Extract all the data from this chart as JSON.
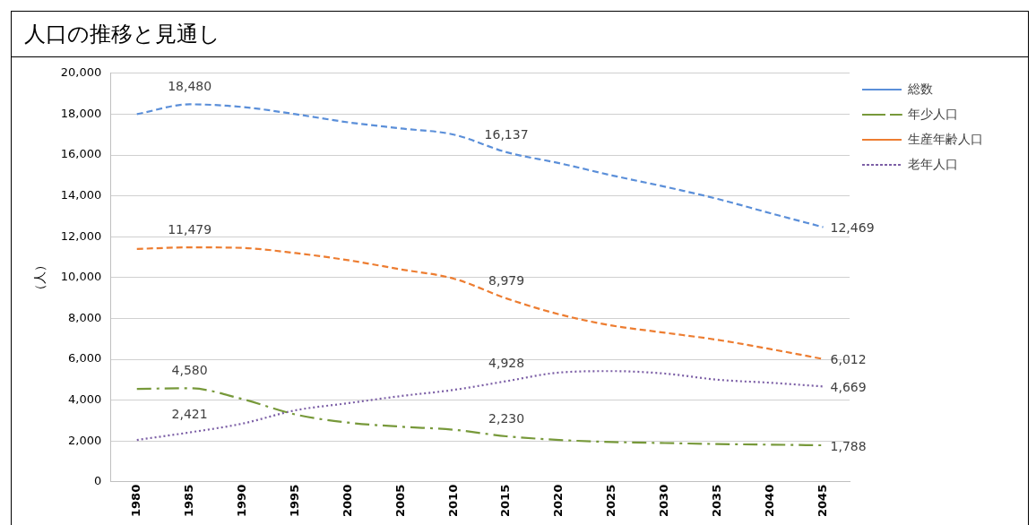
{
  "chart_data": {
    "type": "line",
    "title": "人口の推移と見通し",
    "ylabel": "（人）",
    "categories": [
      "1980",
      "1985",
      "1990",
      "1995",
      "2000",
      "2005",
      "2010",
      "2015",
      "2020",
      "2025",
      "2030",
      "2035",
      "2040",
      "2045"
    ],
    "series": [
      {
        "name": "総数",
        "color": "#5b8fd9",
        "line_style": "dashed",
        "values": [
          18000,
          18480,
          18350,
          18000,
          17600,
          17300,
          17000,
          16137,
          15600,
          15000,
          14450,
          13850,
          13150,
          12469
        ],
        "value_labels": [
          null,
          "18,480",
          null,
          null,
          null,
          null,
          null,
          "16,137",
          null,
          null,
          null,
          null,
          null,
          "12,469"
        ]
      },
      {
        "name": "年少人口",
        "color": "#77993a",
        "line_style": "dashdot",
        "values": [
          4550,
          4580,
          4050,
          3300,
          2900,
          2700,
          2550,
          2230,
          2050,
          1950,
          1900,
          1850,
          1820,
          1788
        ],
        "value_labels": [
          null,
          "4,580",
          null,
          null,
          null,
          null,
          null,
          "2,230",
          null,
          null,
          null,
          null,
          null,
          "1,788"
        ]
      },
      {
        "name": "生産年齢人口",
        "color": "#ed7d31",
        "line_style": "dashed",
        "values": [
          11400,
          11479,
          11450,
          11200,
          10850,
          10400,
          9950,
          8979,
          8200,
          7650,
          7300,
          6950,
          6500,
          6012
        ],
        "value_labels": [
          null,
          "11,479",
          null,
          null,
          null,
          null,
          null,
          "8,979",
          null,
          null,
          null,
          null,
          null,
          "6,012"
        ]
      },
      {
        "name": "老年人口",
        "color": "#7c5fa6",
        "line_style": "dotted",
        "values": [
          2050,
          2421,
          2850,
          3500,
          3850,
          4200,
          4500,
          4928,
          5350,
          5420,
          5300,
          5000,
          4850,
          4669
        ],
        "value_labels": [
          null,
          "2,421",
          null,
          null,
          null,
          null,
          null,
          "4,928",
          null,
          null,
          null,
          null,
          null,
          "4,669"
        ]
      }
    ],
    "ylim": [
      0,
      20000
    ],
    "yticks": [
      {
        "value": 0,
        "label": "0"
      },
      {
        "value": 2000,
        "label": "2,000"
      },
      {
        "value": 4000,
        "label": "4,000"
      },
      {
        "value": 6000,
        "label": "6,000"
      },
      {
        "value": 8000,
        "label": "8,000"
      },
      {
        "value": 10000,
        "label": "10,000"
      },
      {
        "value": 12000,
        "label": "12,000"
      },
      {
        "value": 14000,
        "label": "14,000"
      },
      {
        "value": 16000,
        "label": "16,000"
      },
      {
        "value": 18000,
        "label": "18,000"
      },
      {
        "value": 20000,
        "label": "20,000"
      }
    ],
    "grid": "y",
    "legend": "right",
    "marker": "none"
  }
}
